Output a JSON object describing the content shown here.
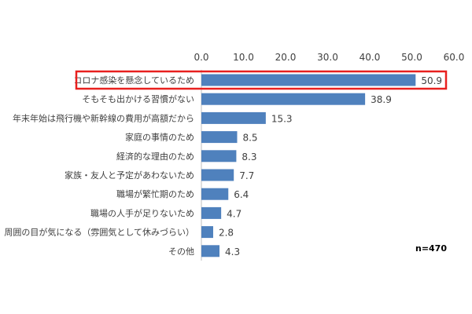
{
  "chart_data": {
    "type": "bar",
    "orientation": "horizontal",
    "categories": [
      "コロナ感染を懸念しているため",
      "そもそも出かける習慣がない",
      "年末年始は飛行機や新幹線の費用が高額だから",
      "家庭の事情のため",
      "経済的な理由のため",
      "家族・友人と予定があわないため",
      "職場が繁忙期のため",
      "職場の人手が足りないため",
      "周囲の目が気になる（雰囲気として休みづらい）",
      "その他"
    ],
    "values": [
      50.9,
      38.9,
      15.3,
      8.5,
      8.3,
      7.7,
      6.4,
      4.7,
      2.8,
      4.3
    ],
    "value_labels": [
      "50.9",
      "38.9",
      "15.3",
      "8.5",
      "8.3",
      "7.7",
      "6.4",
      "4.7",
      "2.8",
      "4.3"
    ],
    "x_ticks": [
      "0.0",
      "10.0",
      "20.0",
      "30.0",
      "40.0",
      "50.0",
      "60.0"
    ],
    "xlim": [
      0,
      60
    ],
    "axis_position": "top",
    "grid": false,
    "highlighted_index": 0,
    "note": "n=470",
    "colors": {
      "bar": "#4f81bd",
      "highlight_border": "#e8201f",
      "axis": "#bfbfbf",
      "text": "#404040"
    }
  }
}
